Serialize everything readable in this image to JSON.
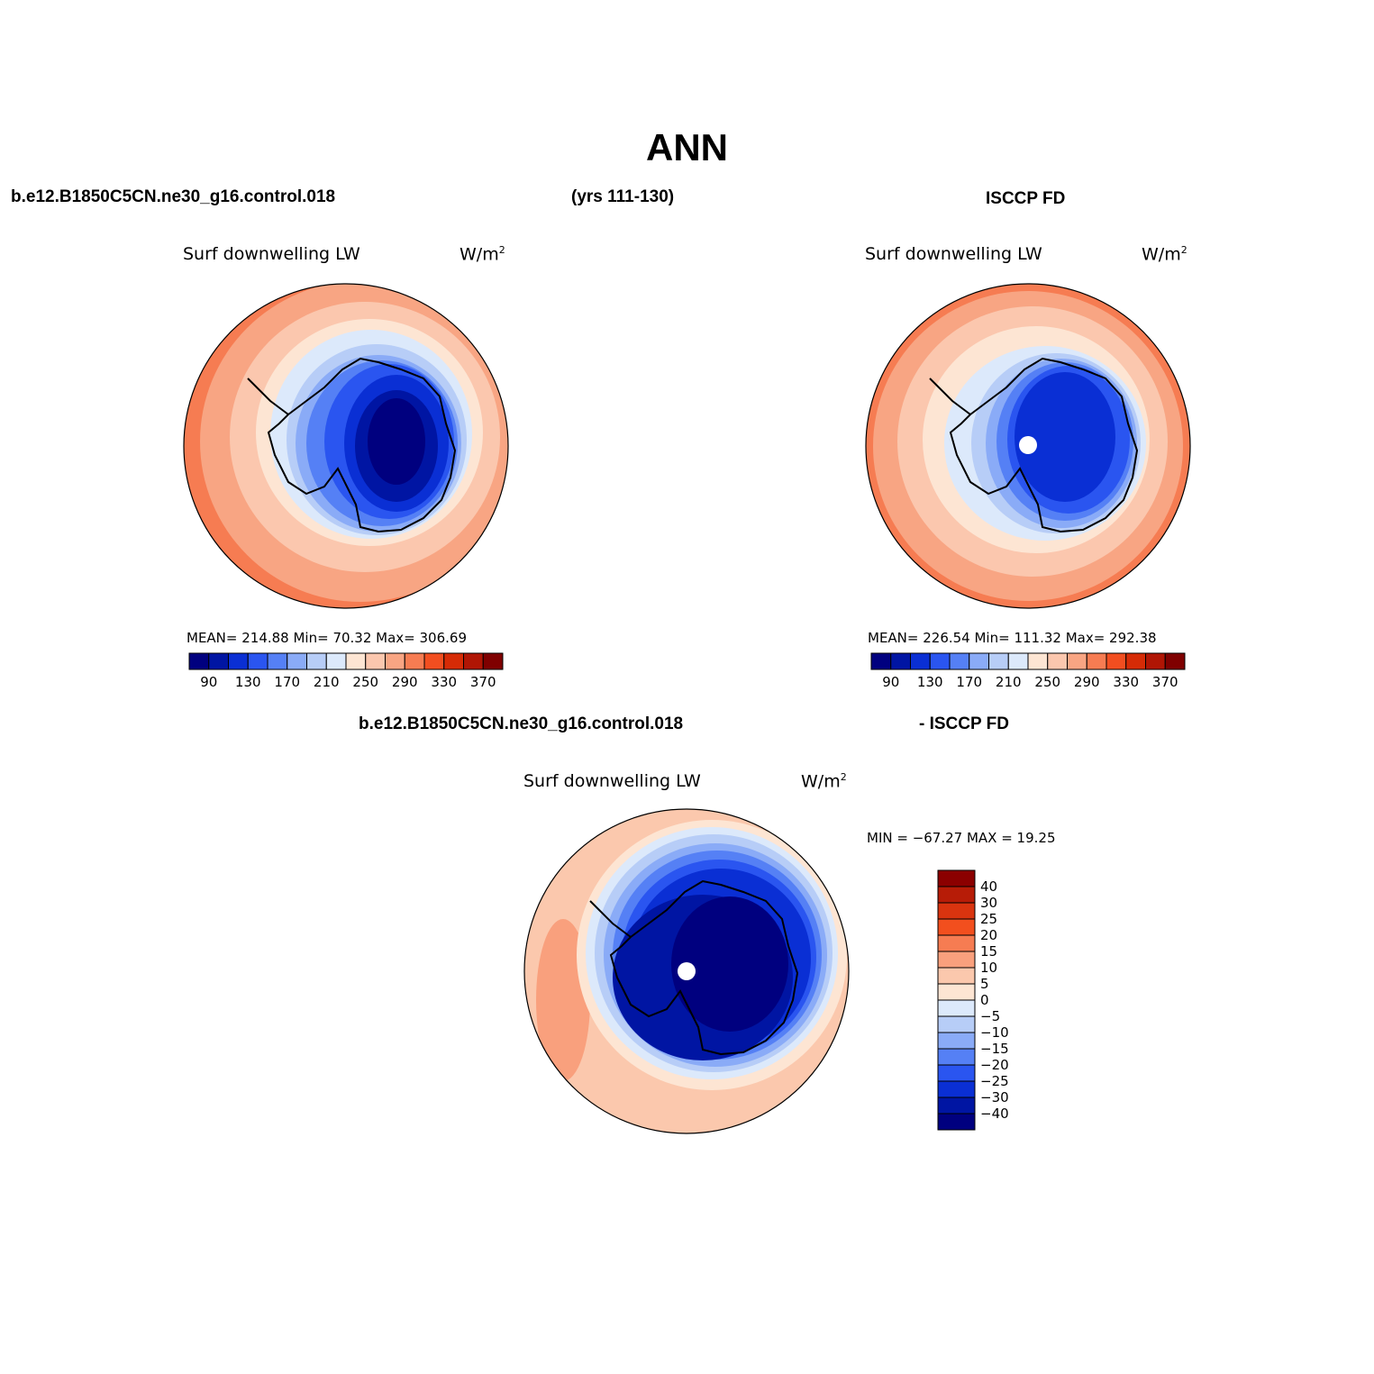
{
  "figure": {
    "title": "ANN",
    "case_name": "b.e12.B1850C5CN.ne30_g16.control.018",
    "years": "(yrs 111-130)",
    "obs_name": "ISCCP FD",
    "diff_case": "b.e12.B1850C5CN.ne30_g16.control.018",
    "diff_obs": "- ISCCP FD"
  },
  "panels": [
    {
      "id": "model",
      "variable": "Surf downwelling LW",
      "units_base": "W/m",
      "units_sup": "2",
      "stats": "MEAN=  214.88   Min=   70.32   Max=  306.69",
      "colorbar": {
        "ticks": [
          "90",
          "130",
          "170",
          "210",
          "250",
          "290",
          "330",
          "370"
        ],
        "colors": [
          "#00007f",
          "#0015a3",
          "#0a2fd4",
          "#2a55f0",
          "#5580f5",
          "#8aabf7",
          "#b7cdf7",
          "#dce9fb",
          "#fde5d3",
          "#fbc7ae",
          "#f8a583",
          "#f67c52",
          "#f24e20",
          "#d62b06",
          "#b01504",
          "#7f0000"
        ]
      }
    },
    {
      "id": "obs",
      "variable": "Surf downwelling LW",
      "units_base": "W/m",
      "units_sup": "2",
      "stats": "MEAN=  226.54   Min=  111.32   Max=  292.38",
      "colorbar": {
        "ticks": [
          "90",
          "130",
          "170",
          "210",
          "250",
          "290",
          "330",
          "370"
        ],
        "colors": [
          "#00007f",
          "#0015a3",
          "#0a2fd4",
          "#2a55f0",
          "#5580f5",
          "#8aabf7",
          "#b7cdf7",
          "#dce9fb",
          "#fde5d3",
          "#fbc7ae",
          "#f8a583",
          "#f67c52",
          "#f24e20",
          "#d62b06",
          "#b01504",
          "#7f0000"
        ]
      }
    },
    {
      "id": "diff",
      "variable": "Surf downwelling LW",
      "units_base": "W/m",
      "units_sup": "2",
      "stats": "MIN = −67.27  MAX =   19.25",
      "colorbar": {
        "labels": [
          "40",
          "30",
          "25",
          "20",
          "15",
          "10",
          "5",
          "0",
          "−5",
          "−10",
          "−15",
          "−20",
          "−25",
          "−30",
          "−40"
        ],
        "colors": [
          "#8b0000",
          "#b71c07",
          "#d9340f",
          "#f24f1e",
          "#f67c52",
          "#f9a07d",
          "#fbc8ad",
          "#fde5d3",
          "#dce9fb",
          "#b7cdf7",
          "#8aabf7",
          "#5580f5",
          "#2a55f0",
          "#0a2fd4",
          "#0015a3",
          "#00007f"
        ]
      }
    }
  ]
}
